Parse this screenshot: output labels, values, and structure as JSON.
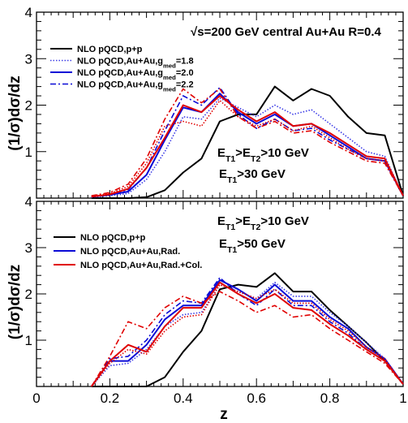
{
  "chart_data": [
    {
      "type": "line",
      "panel": "top",
      "title": "√s=200 GeV  central Au+Au   R=0.4",
      "annotations": [
        "E_T1>E_T2>10 GeV",
        "E_T1>30 GeV"
      ],
      "xlabel": "",
      "ylabel": "(1/σ)dσ/dz",
      "xlim": [
        0,
        1
      ],
      "ylim": [
        0,
        4
      ],
      "yticks": [
        "1",
        "2",
        "3",
        "4"
      ],
      "legend_position": "top-left",
      "x": [
        0.15,
        0.2,
        0.25,
        0.3,
        0.35,
        0.4,
        0.45,
        0.5,
        0.55,
        0.6,
        0.65,
        0.7,
        0.75,
        0.8,
        0.85,
        0.9,
        0.95,
        1.0
      ],
      "series": [
        {
          "name": "NLO pQCD,p+p",
          "color": "#000000",
          "style": "solid",
          "values": [
            0,
            0,
            0,
            0.02,
            0.17,
            0.55,
            0.85,
            1.65,
            1.8,
            1.8,
            2.4,
            2.1,
            2.35,
            2.2,
            1.75,
            1.4,
            1.35,
            0.05
          ]
        },
        {
          "name": "NLO pQCD,Au+Au,g_med=1.8",
          "color": "#3a3ae6",
          "style": "dotted",
          "values": [
            0.02,
            0.05,
            0.1,
            0.4,
            1.0,
            1.75,
            1.7,
            2.15,
            1.95,
            1.75,
            2.0,
            1.8,
            1.9,
            1.6,
            1.3,
            1.0,
            0.9,
            0.05
          ]
        },
        {
          "name": "NLO pQCD,Au+Au,g_med=2.0",
          "color": "#0a0ad6",
          "style": "solid",
          "values": [
            0.03,
            0.07,
            0.14,
            0.5,
            1.25,
            1.95,
            1.85,
            2.25,
            1.85,
            1.6,
            1.8,
            1.55,
            1.6,
            1.35,
            1.1,
            0.85,
            0.8,
            0.05
          ]
        },
        {
          "name": "NLO pQCD,Au+Au,g_med=2.2",
          "color": "#0a0ad6",
          "style": "dashdot",
          "values": [
            0.03,
            0.08,
            0.18,
            0.65,
            1.45,
            2.2,
            2.0,
            2.38,
            1.8,
            1.5,
            1.7,
            1.45,
            1.5,
            1.25,
            1.05,
            0.85,
            0.8,
            0.05
          ]
        },
        {
          "name": "",
          "color": "#e00000",
          "style": "solid",
          "values": [
            0.03,
            0.08,
            0.2,
            0.65,
            1.3,
            2.0,
            1.85,
            2.2,
            1.9,
            1.65,
            1.85,
            1.55,
            1.6,
            1.4,
            1.15,
            0.9,
            0.85,
            0.05
          ]
        },
        {
          "name": "",
          "color": "#e00000",
          "style": "dotted",
          "values": [
            0.04,
            0.1,
            0.25,
            0.75,
            1.55,
            1.65,
            1.55,
            2.1,
            1.75,
            1.55,
            1.7,
            1.45,
            1.55,
            1.3,
            1.05,
            0.85,
            0.8,
            0.05
          ]
        },
        {
          "name": "",
          "color": "#e00000",
          "style": "dashdot",
          "values": [
            0.05,
            0.12,
            0.3,
            0.85,
            1.7,
            2.35,
            2.05,
            2.35,
            1.75,
            1.5,
            1.65,
            1.4,
            1.45,
            1.2,
            1.0,
            0.8,
            0.75,
            0.05
          ]
        }
      ]
    },
    {
      "type": "line",
      "panel": "bottom",
      "title": "",
      "annotations": [
        "E_T1>E_T2>10 GeV",
        "E_T1>50 GeV"
      ],
      "xlabel": "z",
      "ylabel": "(1/σ)dσ/dz",
      "xlim": [
        0,
        1
      ],
      "ylim": [
        0,
        4
      ],
      "xticks": [
        "0",
        "0.2",
        "0.4",
        "0.6",
        "0.8",
        "1"
      ],
      "yticks": [
        "1",
        "2",
        "3",
        "4"
      ],
      "legend_position": "top-left",
      "x": [
        0.15,
        0.2,
        0.25,
        0.3,
        0.35,
        0.4,
        0.45,
        0.5,
        0.55,
        0.6,
        0.65,
        0.7,
        0.75,
        0.8,
        0.85,
        0.9,
        0.95,
        1.0
      ],
      "series": [
        {
          "name": "NLO pQCD,p+p",
          "color": "#000000",
          "style": "solid",
          "values": [
            0,
            0,
            0,
            0,
            0.2,
            0.75,
            1.2,
            2.1,
            2.2,
            2.15,
            2.45,
            2.05,
            2.05,
            1.65,
            1.3,
            0.95,
            0.55,
            0.05
          ]
        },
        {
          "name": "NLO pQCD,Au+Au,Rad.",
          "color": "#0a0ad6",
          "style": "solid",
          "values": [
            0,
            0.55,
            0.55,
            0.9,
            1.45,
            1.75,
            1.75,
            2.3,
            2.1,
            1.85,
            2.2,
            1.85,
            1.85,
            1.5,
            1.25,
            0.85,
            0.6,
            0.05
          ]
        },
        {
          "name": "",
          "color": "#3a3ae6",
          "style": "dotted",
          "values": [
            0,
            0.45,
            0.5,
            0.8,
            1.3,
            1.55,
            1.6,
            2.2,
            2.05,
            1.9,
            2.25,
            1.95,
            1.95,
            1.6,
            1.3,
            0.95,
            0.6,
            0.05
          ]
        },
        {
          "name": "",
          "color": "#0a0ad6",
          "style": "dashdot",
          "values": [
            0,
            0.6,
            0.65,
            1.0,
            1.55,
            1.85,
            1.8,
            2.35,
            2.0,
            1.75,
            2.1,
            1.75,
            1.75,
            1.4,
            1.15,
            0.8,
            0.55,
            0.05
          ]
        },
        {
          "name": "NLO pQCD,Au+Au,Rad.+Col.",
          "color": "#e00000",
          "style": "solid",
          "values": [
            0,
            0.55,
            0.9,
            0.75,
            1.3,
            1.7,
            1.7,
            2.25,
            2.0,
            1.8,
            2.0,
            1.7,
            1.65,
            1.35,
            1.1,
            0.8,
            0.55,
            0.05
          ]
        },
        {
          "name": "",
          "color": "#e00000",
          "style": "dotted",
          "values": [
            0,
            0.5,
            0.8,
            0.7,
            1.2,
            1.5,
            1.55,
            2.2,
            2.05,
            1.9,
            2.1,
            1.8,
            1.8,
            1.45,
            1.2,
            0.85,
            0.6,
            0.05
          ]
        },
        {
          "name": "",
          "color": "#e00000",
          "style": "dashdot",
          "values": [
            0,
            0.65,
            1.4,
            1.25,
            1.7,
            1.95,
            1.8,
            2.05,
            1.85,
            1.6,
            1.75,
            1.5,
            1.55,
            1.25,
            1.0,
            0.75,
            0.5,
            0.05
          ]
        }
      ]
    }
  ]
}
